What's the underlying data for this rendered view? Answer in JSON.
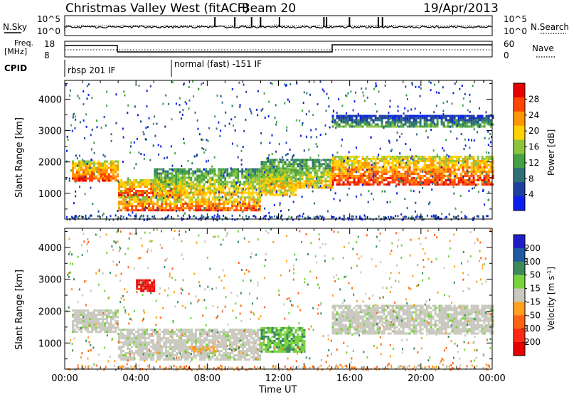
{
  "header": {
    "station": "Christmas Valley West (fitACF)",
    "beam": "Beam 20",
    "date": "19/Apr/2013"
  },
  "strip": {
    "nsky_label": "N.Sky",
    "nsky_ticks": [
      "10^5",
      "10^0"
    ],
    "nsearch_label": "N.Search",
    "nsearch_ticks": [
      "10^5",
      "10^0"
    ],
    "freq_label": "Freq.",
    "freq_unit": "[MHz]",
    "freq_ticks": [
      "18",
      "8"
    ],
    "nave_label": "Nave",
    "nave_ticks": [
      "60",
      "0"
    ],
    "cpid_label": "CPID",
    "cpid_segments": [
      "rbsp 201 IF",
      "normal (fast) -151 IF"
    ]
  },
  "colors": {
    "power_scale": [
      "#0a1ef0",
      "#1e3fa0",
      "#2f6f78",
      "#46a046",
      "#8cc43c",
      "#ffd200",
      "#ff9600",
      "#ff4600",
      "#e80000"
    ],
    "velocity_scale": [
      "#1e1ec8",
      "#1e5aa0",
      "#3a8a5a",
      "#78d23c",
      "#c8c8be",
      "#ffa01e",
      "#ff6414",
      "#ff2814",
      "#e60000"
    ]
  },
  "chart_data": [
    {
      "type": "heatmap",
      "name": "power",
      "xlabel": "",
      "ylabel": "Slant Range [km]",
      "x_ticks": [
        "00:00",
        "04:00",
        "08:00",
        "12:00",
        "16:00",
        "20:00",
        "00:00"
      ],
      "x_range_hours": [
        0,
        24
      ],
      "y_ticks": [
        1000,
        2000,
        3000,
        4000
      ],
      "y_range_km": [
        180,
        4600
      ],
      "colorbar": {
        "label": "Power [dB]",
        "ticks": [
          4,
          8,
          12,
          16,
          20,
          24,
          28
        ],
        "range": [
          0,
          32
        ]
      },
      "echo_bands": [
        {
          "t_start": 0.4,
          "t_end": 3.0,
          "range_low": 1380,
          "range_high": 2050,
          "level": "high"
        },
        {
          "t_start": 3.0,
          "t_end": 6.5,
          "range_low": 900,
          "range_high": 1450,
          "level": "high"
        },
        {
          "t_start": 3.0,
          "t_end": 11.0,
          "range_low": 450,
          "range_high": 900,
          "level": "high"
        },
        {
          "t_start": 5.0,
          "t_end": 13.0,
          "range_low": 950,
          "range_high": 1800,
          "level": "mid"
        },
        {
          "t_start": 11.0,
          "t_end": 15.0,
          "range_low": 1200,
          "range_high": 2100,
          "level": "mid"
        },
        {
          "t_start": 15.0,
          "t_end": 24.0,
          "range_low": 1300,
          "range_high": 2200,
          "level": "high"
        },
        {
          "t_start": 15.0,
          "t_end": 24.0,
          "range_low": 3150,
          "range_high": 3500,
          "level": "low"
        }
      ]
    },
    {
      "type": "heatmap",
      "name": "velocity",
      "xlabel": "Time UT",
      "ylabel": "Slant Range [km]",
      "x_ticks": [
        "00:00",
        "04:00",
        "08:00",
        "12:00",
        "16:00",
        "20:00",
        "00:00"
      ],
      "x_range_hours": [
        0,
        24
      ],
      "y_ticks": [
        1000,
        2000,
        3000,
        4000
      ],
      "y_range_km": [
        180,
        4600
      ],
      "colorbar": {
        "label": "Velocity [m s^-1]",
        "ticks": [
          200,
          100,
          50,
          15,
          -15,
          -50,
          -100,
          -200
        ]
      },
      "echo_bands": [
        {
          "t_start": 0.4,
          "t_end": 3.0,
          "range_low": 1380,
          "range_high": 2050,
          "velocity": "near-zero"
        },
        {
          "t_start": 3.0,
          "t_end": 11.0,
          "range_low": 450,
          "range_high": 1450,
          "velocity": "near-zero"
        },
        {
          "t_start": 7.0,
          "t_end": 8.5,
          "range_low": 700,
          "range_high": 900,
          "velocity": "-50"
        },
        {
          "t_start": 11.0,
          "t_end": 13.5,
          "range_low": 750,
          "range_high": 1500,
          "velocity": "15..50"
        },
        {
          "t_start": 4.0,
          "t_end": 5.0,
          "range_low": 2650,
          "range_high": 3000,
          "velocity": "-200"
        },
        {
          "t_start": 15.0,
          "t_end": 24.0,
          "range_low": 1300,
          "range_high": 2200,
          "velocity": "near-zero"
        }
      ]
    }
  ]
}
